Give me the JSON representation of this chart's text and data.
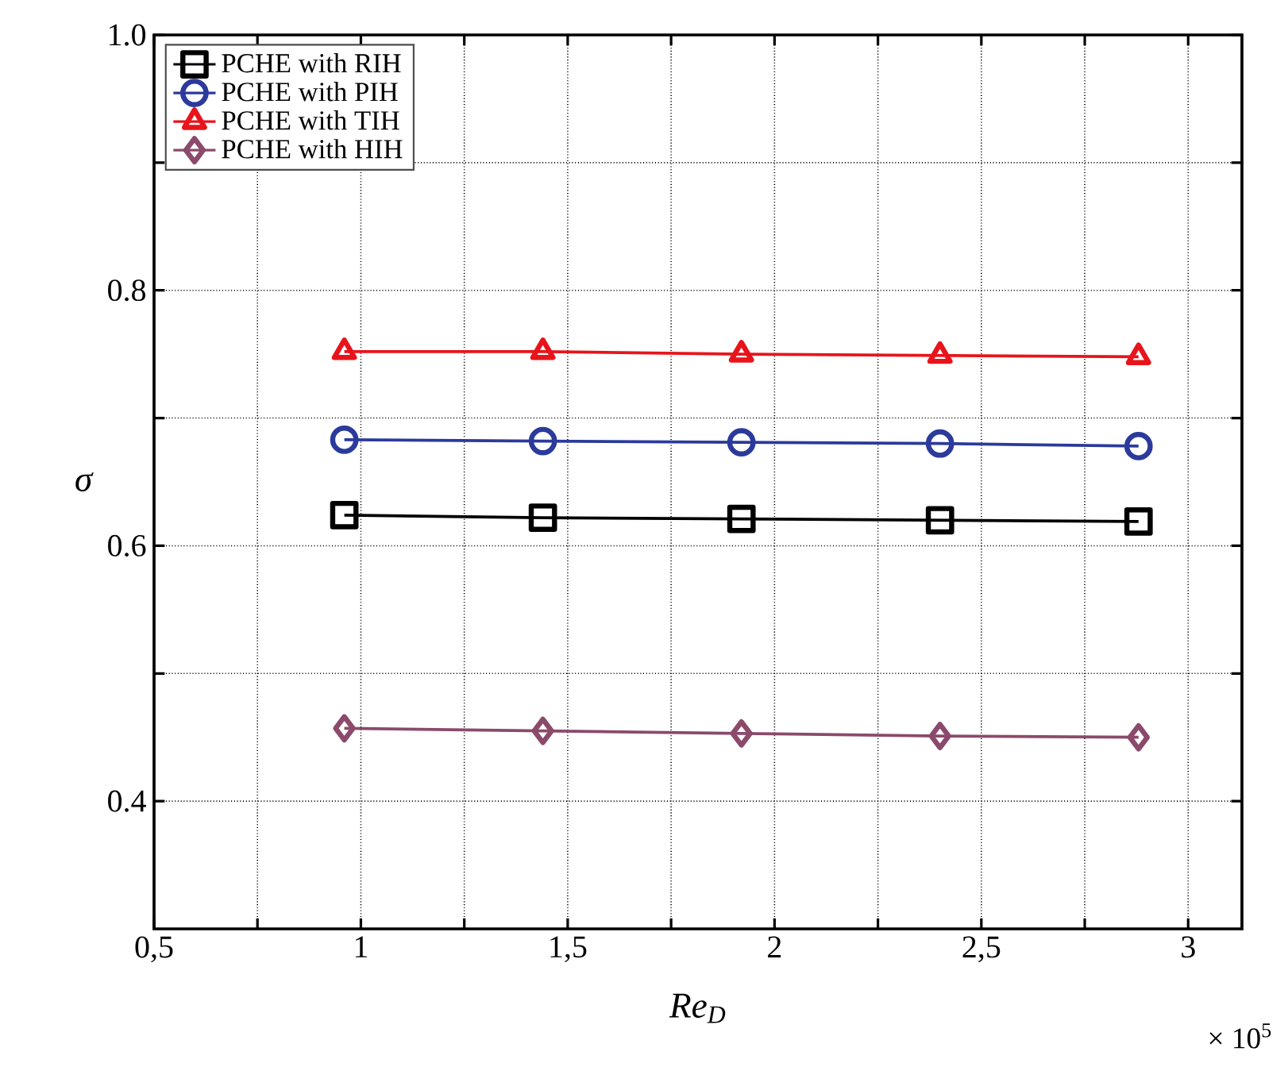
{
  "chart_data": {
    "type": "line",
    "xlabel": "Re$_{D}$",
    "ylabel": "σ",
    "x": [
      0.96,
      1.44,
      1.92,
      2.4,
      2.88
    ],
    "series": [
      {
        "name": "PCHE with RIH",
        "color": "#000000",
        "marker": "square",
        "values": [
          0.624,
          0.622,
          0.621,
          0.62,
          0.619
        ]
      },
      {
        "name": "PCHE with PIH",
        "color": "#2b3a9b",
        "marker": "circle",
        "values": [
          0.683,
          0.682,
          0.681,
          0.68,
          0.678
        ]
      },
      {
        "name": "PCHE with TIH",
        "color": "#e8141b",
        "marker": "triangle",
        "values": [
          0.752,
          0.752,
          0.75,
          0.749,
          0.748
        ]
      },
      {
        "name": "PCHE with HIH",
        "color": "#8b4a6b",
        "marker": "diamond",
        "values": [
          0.457,
          0.455,
          0.453,
          0.451,
          0.45
        ]
      }
    ],
    "xlim": [
      0.5,
      3.13
    ],
    "ylim": [
      0.3,
      1.0
    ],
    "xticks": [
      {
        "value": 0.5,
        "label": "0,5"
      },
      {
        "value": 0.75,
        "label": null
      },
      1,
      {
        "value": 1.25,
        "label": null
      },
      {
        "value": 1.5,
        "label": "1,5"
      },
      {
        "value": 1.75,
        "label": null
      },
      2,
      {
        "value": 2.25,
        "label": null
      },
      {
        "value": 2.5,
        "label": "2,5"
      },
      {
        "value": 2.75,
        "label": null
      },
      3
    ],
    "yticks": [
      0.4,
      {
        "value": 0.5,
        "label": null
      },
      0.6,
      {
        "value": 0.7,
        "label": null
      },
      0.8,
      {
        "value": 0.9,
        "label": null
      },
      {
        "value": 1.0,
        "label": "1.0"
      }
    ],
    "grid": true,
    "legend": "top left",
    "annotations": [
      "× 10$^{5}$"
    ]
  }
}
